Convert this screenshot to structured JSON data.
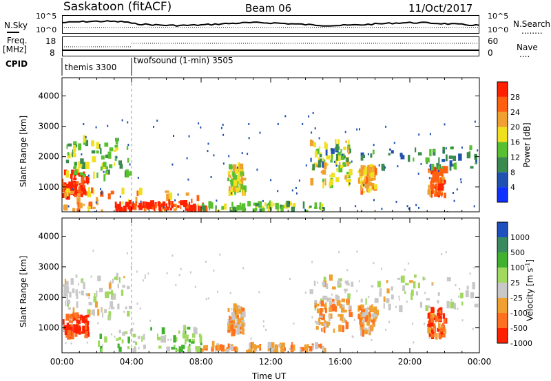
{
  "header": {
    "title": "Saskatoon (fitACF)",
    "beam": "Beam 06",
    "date": "11/Oct/2017"
  },
  "strip_labels": {
    "nsky": "N.Sky",
    "nsearch": "N.Search",
    "nsearch_dots": "........",
    "freq": "Freq.",
    "freq_unit": "[MHz]",
    "nave": "Nave",
    "nave_dots": "....",
    "cpid": "CPID",
    "nsky_top": "10^5",
    "nsky_bot": "10^0",
    "nsearch_top": "10^5",
    "nsearch_bot": "10^0",
    "freq_top": "18",
    "freq_bot": "8",
    "nave_top": "60",
    "nave_bot": "0"
  },
  "cpid_modes": [
    {
      "name": "themis 3300",
      "start_hour": 0
    },
    {
      "name": "twofsound (1-min) 3505",
      "start_hour": 4
    }
  ],
  "x_axis": {
    "label": "Time UT",
    "ticks": [
      "00:00",
      "04:00",
      "08:00",
      "12:00",
      "16:00",
      "20:00",
      "00:00"
    ]
  },
  "chart_data": [
    {
      "type": "heatmap",
      "name": "power",
      "ylabel": "Slant Range [km]",
      "yticks": [
        "1000",
        "2000",
        "3000",
        "4000"
      ],
      "ylim": [
        180,
        4600
      ],
      "xlim_hours": [
        0,
        24
      ],
      "colorbar_label": "Power [dB]",
      "colorbar_ticks": [
        "4",
        "8",
        "12",
        "16",
        "20",
        "24",
        "28"
      ],
      "colorbar_colors": [
        "#1030ff",
        "#2050b0",
        "#3a8a50",
        "#58c030",
        "#f0e020",
        "#f0a030",
        "#ff6010",
        "#ff2000"
      ],
      "regions": [
        {
          "h0": 0.0,
          "h1": 1.5,
          "r0": 700,
          "r1": 1500,
          "level": 7
        },
        {
          "h0": 0.2,
          "h1": 3.9,
          "r0": 1300,
          "r1": 2600,
          "level": 3
        },
        {
          "h0": 0.0,
          "h1": 8.0,
          "r0": 200,
          "r1": 900,
          "level": 5
        },
        {
          "h0": 3.0,
          "h1": 8.2,
          "r0": 250,
          "r1": 500,
          "level": 7
        },
        {
          "h0": 9.5,
          "h1": 10.4,
          "r0": 800,
          "r1": 1700,
          "level": 4
        },
        {
          "h0": 14.2,
          "h1": 16.5,
          "r0": 1000,
          "r1": 2500,
          "level": 4
        },
        {
          "h0": 17.0,
          "h1": 18.0,
          "r0": 800,
          "r1": 1700,
          "level": 5
        },
        {
          "h0": 21.0,
          "h1": 22.0,
          "r0": 700,
          "r1": 1600,
          "level": 6
        },
        {
          "h0": 14.0,
          "h1": 24.0,
          "r0": 1600,
          "r1": 2300,
          "level": 2
        },
        {
          "h0": 8.0,
          "h1": 15.0,
          "r0": 200,
          "r1": 450,
          "level": 3
        }
      ]
    },
    {
      "type": "heatmap",
      "name": "velocity",
      "ylabel": "Slant Range [km]",
      "yticks": [
        "1000",
        "2000",
        "3000",
        "4000"
      ],
      "ylim": [
        180,
        4600
      ],
      "xlim_hours": [
        0,
        24
      ],
      "colorbar_label": "Velocity [m s^-1]",
      "colorbar_ticks": [
        "1000",
        "500",
        "100",
        "25",
        "-25",
        "-100",
        "-500",
        "-1000"
      ],
      "colorbar_colors": [
        "#2050c0",
        "#3a8a60",
        "#40b030",
        "#a0d860",
        "#c8c8c8",
        "#f0a030",
        "#ff7020",
        "#ff2000"
      ],
      "regions": [
        {
          "h0": 0.0,
          "h1": 4.0,
          "r0": 1300,
          "r1": 2700,
          "level": 4
        },
        {
          "h0": 2.0,
          "h1": 8.0,
          "r0": 200,
          "r1": 1000,
          "level": 3
        },
        {
          "h0": 9.5,
          "h1": 10.4,
          "r0": 800,
          "r1": 1700,
          "level": 5
        },
        {
          "h0": 14.0,
          "h1": 24.0,
          "r0": 1600,
          "r1": 2700,
          "level": 4
        },
        {
          "h0": 14.5,
          "h1": 16.5,
          "r0": 900,
          "r1": 2000,
          "level": 5
        },
        {
          "h0": 17.0,
          "h1": 18.0,
          "r0": 800,
          "r1": 1700,
          "level": 5
        },
        {
          "h0": 21.0,
          "h1": 22.0,
          "r0": 700,
          "r1": 1600,
          "level": 6
        },
        {
          "h0": 8.0,
          "h1": 15.0,
          "r0": 200,
          "r1": 450,
          "level": 5
        },
        {
          "h0": 0.0,
          "h1": 1.5,
          "r0": 700,
          "r1": 1400,
          "level": 7
        }
      ]
    }
  ]
}
